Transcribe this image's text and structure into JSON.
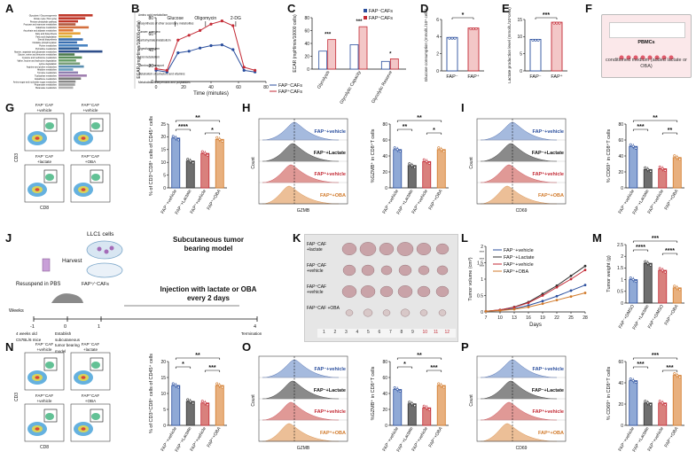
{
  "panels": [
    "A",
    "B",
    "C",
    "D",
    "E",
    "F",
    "G",
    "H",
    "I",
    "J",
    "K",
    "L",
    "M",
    "N",
    "O",
    "P"
  ],
  "colors": {
    "fap_neg": "#2b4f9e",
    "fap_pos": "#c32a35",
    "lactate": "#555555",
    "oba": "#d17a2b",
    "blue_fill": "#8fa9d6",
    "black_fill": "#6e6e6e",
    "red_fill": "#d9807d",
    "orange_fill": "#e8b07e"
  },
  "panel_a": {
    "pathways": [
      "Glycolysis / Gluconeogenesis",
      "Citrate cycle (TCA cycle)",
      "Pentose phosphate pathway",
      "Fructose and mannose metabolism",
      "Galactose metabolism",
      "Ascorbate and aldarate metabolism",
      "Fatty acid biosynthesis",
      "Fatty acid degradation",
      "Steroid biosynthesis",
      "Oxidative phosphorylation",
      "Purine metabolism",
      "Pyrimidine metabolism",
      "Alanine, aspartate and glutamate metabolism",
      "Glycine, serine and threonine metabolism",
      "Cysteine and methionine metabolism",
      "Valine, leucine and isoleucine degradation",
      "Lysine degradation",
      "Arginine and proline metabolism",
      "Histidine metabolism",
      "Tyrosine metabolism",
      "Tryptophan metabolism",
      "Glutathione metabolism",
      "Amino sugar and nucleotide sugar metabolism",
      "Propanoate metabolism",
      "Butanoate metabolism"
    ],
    "groups": [
      "Amino acid metabolism",
      "Biosynthesis of other secondary metabolites",
      "Cancer: overview",
      "Carbohydrate metabolism",
      "Digestive system",
      "Lipid metabolism",
      "Membrane transport",
      "Metabolism of cofactors and vitamins",
      "Metabolism of terpenoids and polyketides"
    ]
  },
  "panel_b": {
    "ylabel": "ECAR (mpH/min/10000 cells)",
    "xlabel": "Time (minutes)",
    "annotations": [
      "Glucose",
      "Oligomycin",
      "2-DG"
    ],
    "legend": [
      "FAP⁻CAFs",
      "FAP⁺CAFs"
    ],
    "chart_data": {
      "type": "line",
      "x": [
        0,
        8,
        16,
        24,
        32,
        40,
        48,
        56,
        64,
        72
      ],
      "series": [
        {
          "name": "FAP⁻CAFs",
          "values": [
            14,
            12,
            36,
            38,
            42,
            45,
            46,
            40,
            14,
            12
          ]
        },
        {
          "name": "FAP⁺CAFs",
          "values": [
            16,
            14,
            52,
            58,
            64,
            72,
            76,
            70,
            18,
            14
          ]
        }
      ],
      "xlim": [
        0,
        80
      ],
      "ylim": [
        0,
        80
      ],
      "xticks": [
        0,
        20,
        40,
        60,
        80
      ],
      "yticks": [
        0,
        20,
        40,
        60,
        80
      ]
    }
  },
  "panel_c": {
    "ylabel": "ECAR (mpH/min/10000 cells)",
    "legend": [
      "FAP⁻CAFs",
      "FAP⁺CAFs"
    ],
    "chart_data": {
      "type": "bar",
      "categories": [
        "Glycolysis",
        "Glycolytic Capacity",
        "Glycolytic Reserve"
      ],
      "series": [
        {
          "name": "FAP⁻CAFs",
          "values": [
            28,
            38,
            12
          ]
        },
        {
          "name": "FAP⁺CAFs",
          "values": [
            46,
            66,
            16
          ]
        }
      ],
      "ylim": [
        0,
        80
      ],
      "sig": [
        "***",
        "***",
        "*"
      ]
    }
  },
  "panel_d": {
    "ylabel": "Glucose consumption (mmol/L/10⁴ cells)",
    "categories": [
      "FAP⁻",
      "FAP⁺"
    ],
    "values": [
      3.9,
      5.0
    ],
    "ylim": [
      0,
      6
    ],
    "sig": "*"
  },
  "panel_e": {
    "ylabel": "Lactate production level (mmol/L/10⁴cells)",
    "categories": [
      "FAP⁻",
      "FAP⁺"
    ],
    "values": [
      9.2,
      14.2
    ],
    "ylim": [
      0,
      15
    ],
    "sig": "***"
  },
  "panel_f": {
    "label": "PBMCs",
    "sub": "conditioned medium (added lactate or OBA)"
  },
  "panel_g": {
    "flow_labels": [
      "FAP⁻CAF +vehicle",
      "FAP⁺CAF +vehicle",
      "FAP⁻CAF +lactate",
      "FAP⁺CAF +OBA"
    ],
    "axis_x": "CD8",
    "axis_y": "CD3",
    "ylabel": "% of CD3⁺CD8⁺ cells of CD45⁺ cells",
    "categories": [
      "FAP⁻+vehicle",
      "FAP⁻+Lactate",
      "FAP⁺+vehicle",
      "FAP⁺+OBA"
    ],
    "values": [
      19.5,
      10.5,
      13.5,
      19.0
    ],
    "ylim": [
      0,
      25
    ],
    "sig": [
      "**",
      "****",
      "*"
    ]
  },
  "panel_h": {
    "hist_labels": [
      "FAP⁻+vehicle",
      "FAP⁻+Lactate",
      "FAP⁺+vehicle",
      "FAP⁺+OBA"
    ],
    "xlabel": "GZMB",
    "ylabel": "Count",
    "bar_ylabel": "%GZMB⁺ in CD8⁺T cells",
    "categories": [
      "FAP⁻+vehicle",
      "FAP⁻+Lactate",
      "FAP⁺+vehicle",
      "FAP⁺+OBA"
    ],
    "values": [
      48,
      28,
      33,
      48
    ],
    "ylim": [
      0,
      80
    ],
    "sig": [
      "**",
      "**",
      "*"
    ]
  },
  "panel_i": {
    "hist_labels": [
      "FAP⁻+vehicle",
      "FAP⁻+Lactate",
      "FAP⁺+vehicle",
      "FAP⁺+OBA"
    ],
    "xlabel": "CD69",
    "ylabel": "Count",
    "bar_ylabel": "% CD69⁺ in CD8⁺T cells",
    "categories": [
      "FAP⁻+vehicle",
      "FAP⁻+Lactate",
      "FAP⁺+vehicle",
      "FAP⁺+OBA"
    ],
    "values": [
      52,
      23,
      24,
      38
    ],
    "ylim": [
      0,
      80
    ],
    "sig": [
      "**",
      "***",
      "**"
    ]
  },
  "panel_j": {
    "cells": "LLC1 cells",
    "harvest": "Harvest",
    "cafs": "FAP⁺⁄⁻CAFs",
    "resuspend": "Resuspend in PBS",
    "title": "Subcutaneous tumor bearing model",
    "injection": "Injection with lactate or OBA every 2 days",
    "weeks": "Weeks",
    "ticks": [
      "-1",
      "0",
      "1",
      "4"
    ],
    "mouse": "4 weeks old C57BL/6 mice",
    "establish": "Establish subcutaneous tumor bearing model",
    "termination": "Termination"
  },
  "panel_k": {
    "groups": [
      "FAP⁻CAF +lactate",
      "FAP⁻CAF +vehicle",
      "FAP⁺CAF +vehicle",
      "FAP⁺CAF +OBA"
    ],
    "ruler": [
      "1",
      "2",
      "3",
      "4",
      "5",
      "6",
      "7",
      "8",
      "9",
      "10",
      "11",
      "12"
    ]
  },
  "panel_l": {
    "ylabel": "Tumor volume (cm³)",
    "xlabel": "Days",
    "legend": [
      "FAP⁻+vehicle",
      "FAP⁻+Lactate",
      "FAP⁺+vehicle",
      "FAP⁺+OBA"
    ],
    "sig": [
      "***",
      "***",
      "***"
    ],
    "chart_data": {
      "type": "line",
      "x": [
        7,
        10,
        13,
        16,
        19,
        22,
        25,
        28
      ],
      "series": [
        {
          "name": "FAP⁻+vehicle",
          "values": [
            0.02,
            0.05,
            0.1,
            0.2,
            0.33,
            0.48,
            0.65,
            0.82
          ]
        },
        {
          "name": "FAP⁻+Lactate",
          "values": [
            0.02,
            0.06,
            0.15,
            0.3,
            0.55,
            0.8,
            1.1,
            1.4
          ]
        },
        {
          "name": "FAP⁺+vehicle",
          "values": [
            0.02,
            0.06,
            0.14,
            0.28,
            0.5,
            0.75,
            1.0,
            1.28
          ]
        },
        {
          "name": "FAP⁺+OBA",
          "values": [
            0.02,
            0.04,
            0.08,
            0.15,
            0.25,
            0.36,
            0.47,
            0.58
          ]
        }
      ],
      "xlim": [
        7,
        28
      ],
      "ylim": [
        0,
        2.0
      ],
      "xticks": [
        7,
        10,
        13,
        16,
        19,
        22,
        25,
        28
      ],
      "yticks": [
        0.0,
        0.5,
        1.0,
        1.5,
        2.0
      ]
    }
  },
  "panel_m": {
    "ylabel": "Tumor weight (g)",
    "categories": [
      "FAP⁻+DMSO",
      "FAP⁻+Lactate",
      "FAP⁺+DMSO",
      "FAP⁺+OBA"
    ],
    "values": [
      1.0,
      1.7,
      1.4,
      0.65
    ],
    "ylim": [
      0,
      2.5
    ],
    "sig": [
      "***",
      "****",
      "****"
    ]
  },
  "panel_n": {
    "flow_labels": [
      "FAP⁻CAF +vehicle",
      "FAP⁻CAF +lactate",
      "FAP⁺CAF +vehicle",
      "FAP⁺CAF +OBA"
    ],
    "axis_x": "CD8",
    "axis_y": "CD3",
    "ylabel": "% of CD3⁺CD8⁺ cells of CD45⁺ cells",
    "categories": [
      "FAP⁻+vehicle",
      "FAP⁻+Lactate",
      "FAP⁺+vehicle",
      "FAP⁺+OBA"
    ],
    "values": [
      12.5,
      7.5,
      7.0,
      12.5
    ],
    "ylim": [
      0,
      20
    ],
    "sig": [
      "**",
      "*",
      "***"
    ]
  },
  "panel_o": {
    "hist_labels": [
      "FAP⁻+vehicle",
      "FAP⁻+Lactate",
      "FAP⁺+vehicle",
      "FAP⁺+OBA"
    ],
    "xlabel": "GZMB",
    "ylabel": "Count",
    "bar_ylabel": "%GZMB⁺ in CD8⁺T cells",
    "categories": [
      "FAP⁻+vehicle",
      "FAP⁻+Lactate",
      "FAP⁺+vehicle",
      "FAP⁺+OBA"
    ],
    "values": [
      45,
      27,
      22,
      50
    ],
    "ylim": [
      0,
      80
    ],
    "sig": [
      "**",
      "*",
      "***"
    ]
  },
  "panel_p": {
    "hist_labels": [
      "FAP⁻+vehicle",
      "FAP⁻+Lactate",
      "FAP⁺+vehicle",
      "FAP⁺+OBA"
    ],
    "xlabel": "CD69",
    "ylabel": "Count",
    "bar_ylabel": "% CD69⁺ in CD8⁺T cells",
    "categories": [
      "FAP⁻+vehicle",
      "FAP⁻+Lactate",
      "FAP⁺+vehicle",
      "FAP⁺+OBA"
    ],
    "values": [
      42,
      21,
      21,
      47
    ],
    "ylim": [
      0,
      60
    ],
    "sig": [
      "***",
      "***",
      "***"
    ]
  }
}
